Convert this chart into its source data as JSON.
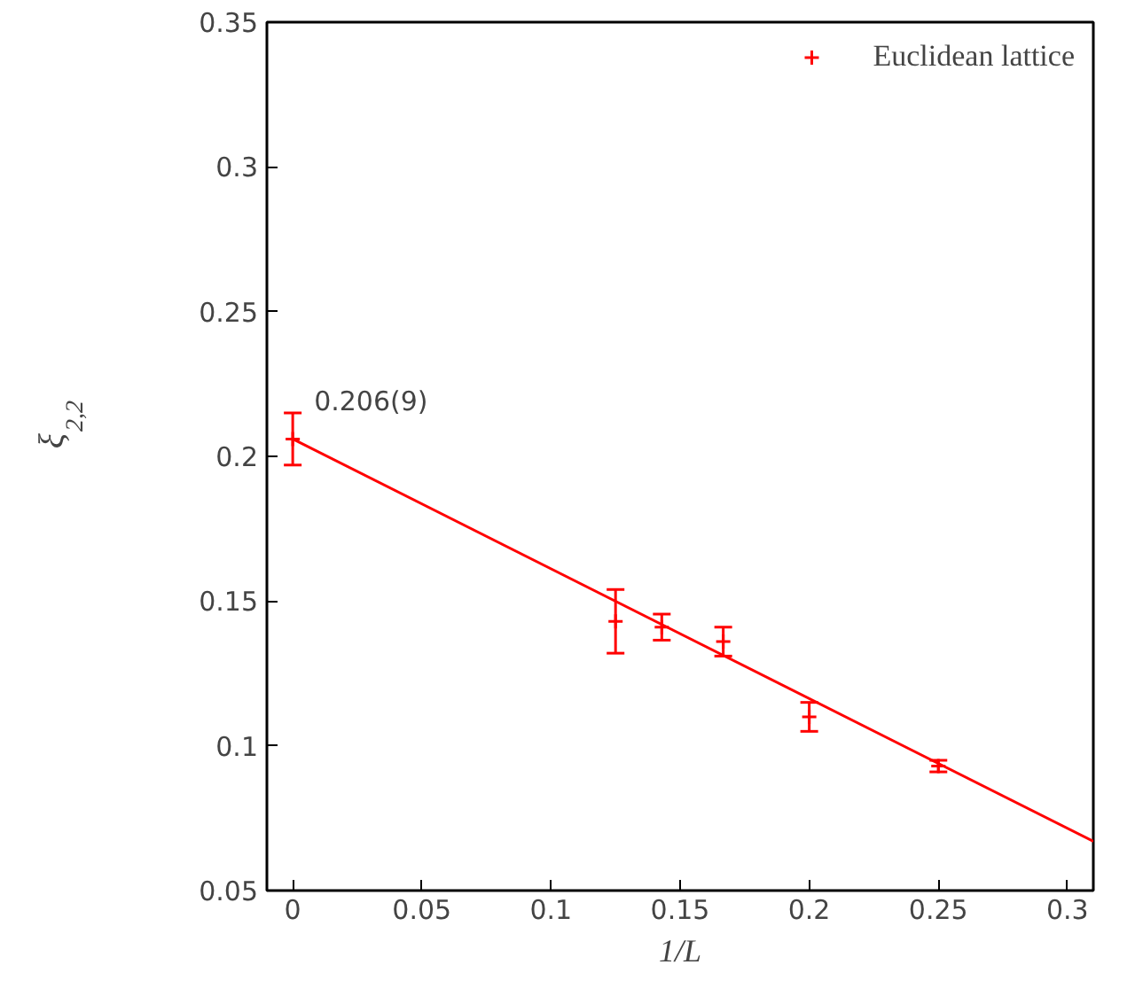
{
  "chart_data": {
    "type": "scatter",
    "xlabel": "1/L",
    "ylabel": "ξ$_{2,2}$",
    "xlim": [
      -0.01,
      0.31
    ],
    "ylim": [
      0.05,
      0.35
    ],
    "xticks": [
      0,
      0.05,
      0.1,
      0.15,
      0.2,
      0.25,
      0.3
    ],
    "yticks": [
      0.05,
      0.1,
      0.15,
      0.2,
      0.25,
      0.3,
      0.35
    ],
    "grid": false,
    "legend": "top right",
    "series": [
      {
        "name": "Euclidean lattice",
        "marker": "cross",
        "color": "#ff0000",
        "x": [
          0,
          0.125,
          0.1429,
          0.1667,
          0.2,
          0.25
        ],
        "values": [
          0.206,
          0.143,
          0.141,
          0.136,
          0.11,
          0.093
        ],
        "errors": [
          0.009,
          0.011,
          0.0045,
          0.005,
          0.005,
          0.002
        ]
      },
      {
        "type": "line",
        "color": "#ff0000",
        "x": [
          0,
          0.31
        ],
        "values": [
          0.206,
          0.067
        ],
        "line_style": "solid"
      }
    ],
    "annotations": [
      {
        "text": "0.206(9)",
        "x": 0,
        "y": 0.206
      }
    ]
  }
}
